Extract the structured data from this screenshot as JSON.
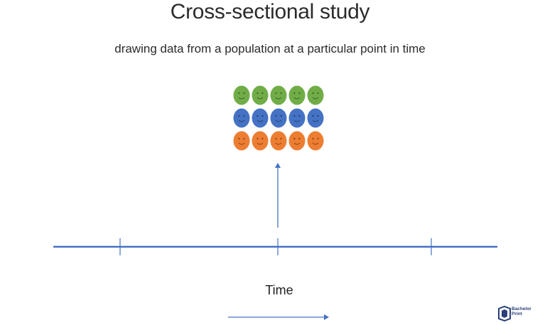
{
  "title": "Cross-sectional study",
  "subtitle": "drawing data from a population at a particular point in time",
  "time_label": "Time",
  "logo_text_line1": "Bachelor",
  "logo_text_line2": "Print",
  "colors": {
    "green": "#70ad47",
    "blue": "#4472c4",
    "orange": "#ed7d31",
    "line": "#4472c4",
    "logo": "#2a3f7a"
  },
  "population": {
    "rows": [
      {
        "color": "green",
        "count": 5
      },
      {
        "color": "blue",
        "count": 5
      },
      {
        "color": "orange",
        "count": 5
      }
    ]
  },
  "icons": [
    "smiley-face-icon",
    "arrow-up-icon",
    "arrow-right-icon",
    "logo-icon"
  ]
}
